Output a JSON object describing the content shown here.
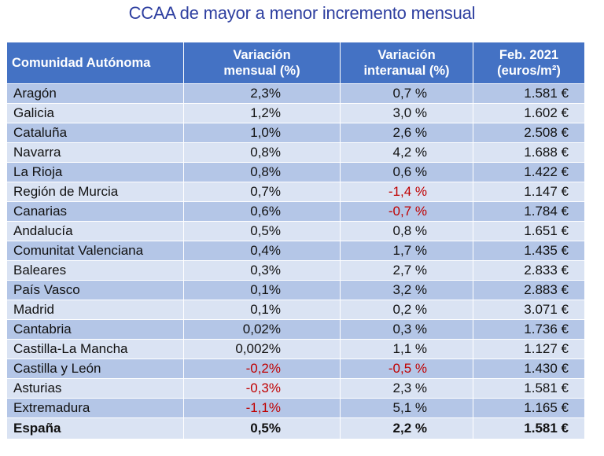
{
  "title": "CCAA de mayor a menor incremento mensual",
  "colors": {
    "header_bg": "#4472c4",
    "row_dark": "#b4c6e7",
    "row_light": "#dae3f3",
    "negative": "#c00000",
    "title": "#2e3fa0"
  },
  "table": {
    "headers": [
      {
        "line1": "Comunidad Autónoma",
        "line2": ""
      },
      {
        "line1": "Variación",
        "line2": "mensual (%)"
      },
      {
        "line1": "Variación",
        "line2": "interanual (%)"
      },
      {
        "line1": "Feb. 2021",
        "line2": "(euros/m²)"
      }
    ],
    "rows": [
      {
        "name": "Aragón",
        "mensual": "2,3%",
        "interanual": "0,7 %",
        "precio": "1.581 €"
      },
      {
        "name": "Galicia",
        "mensual": "1,2%",
        "interanual": "3,0 %",
        "precio": "1.602 €"
      },
      {
        "name": "Cataluña",
        "mensual": "1,0%",
        "interanual": "2,6 %",
        "precio": "2.508 €"
      },
      {
        "name": "Navarra",
        "mensual": "0,8%",
        "interanual": "4,2 %",
        "precio": "1.688 €"
      },
      {
        "name": "La Rioja",
        "mensual": "0,8%",
        "interanual": "0,6 %",
        "precio": "1.422 €"
      },
      {
        "name": "Región de Murcia",
        "mensual": "0,7%",
        "interanual": "-1,4 %",
        "precio": "1.147 €"
      },
      {
        "name": "Canarias",
        "mensual": "0,6%",
        "interanual": "-0,7 %",
        "precio": "1.784 €"
      },
      {
        "name": "Andalucía",
        "mensual": "0,5%",
        "interanual": "0,8 %",
        "precio": "1.651 €"
      },
      {
        "name": "Comunitat Valenciana",
        "mensual": "0,4%",
        "interanual": "1,7 %",
        "precio": "1.435 €"
      },
      {
        "name": "Baleares",
        "mensual": "0,3%",
        "interanual": "2,7 %",
        "precio": "2.833 €"
      },
      {
        "name": "País Vasco",
        "mensual": "0,1%",
        "interanual": "3,2 %",
        "precio": "2.883 €"
      },
      {
        "name": "Madrid",
        "mensual": "0,1%",
        "interanual": "0,2 %",
        "precio": "3.071 €"
      },
      {
        "name": "Cantabria",
        "mensual": "0,02%",
        "interanual": "0,3 %",
        "precio": "1.736 €"
      },
      {
        "name": "Castilla-La Mancha",
        "mensual": "0,002%",
        "interanual": "1,1 %",
        "precio": "1.127 €"
      },
      {
        "name": "Castilla y León",
        "mensual": "-0,2%",
        "interanual": "-0,5 %",
        "precio": "1.430 €"
      },
      {
        "name": "Asturias",
        "mensual": "-0,3%",
        "interanual": "2,3 %",
        "precio": "1.581 €"
      },
      {
        "name": "Extremadura",
        "mensual": "-1,1%",
        "interanual": "5,1 %",
        "precio": "1.165 €"
      }
    ],
    "total": {
      "name": "España",
      "mensual": "0,5%",
      "interanual": "2,2 %",
      "precio": "1.581 €"
    }
  }
}
